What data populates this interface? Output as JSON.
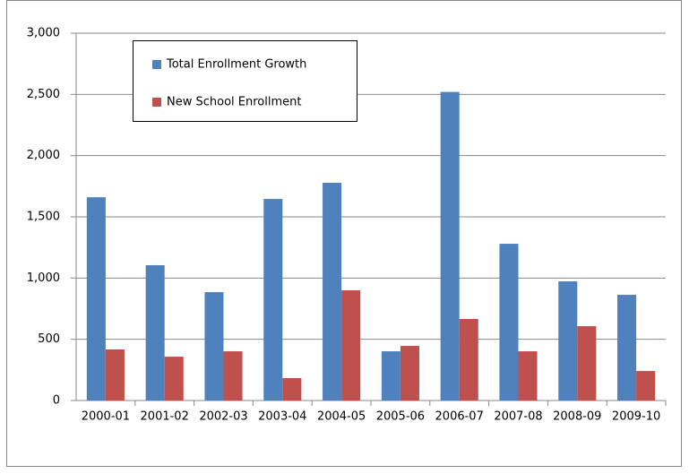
{
  "chart_data": {
    "type": "bar",
    "categories": [
      "2000-01",
      "2001-02",
      "2002-03",
      "2003-04",
      "2004-05",
      "2005-06",
      "2006-07",
      "2007-08",
      "2008-09",
      "2009-10"
    ],
    "series": [
      {
        "name": "Total Enrollment  Growth",
        "color": "#4f81bd",
        "values": [
          1660,
          1105,
          885,
          1646,
          1778,
          402,
          2520,
          1280,
          973,
          863
        ]
      },
      {
        "name": "New School Enrollment",
        "color": "#c0504d",
        "values": [
          417,
          358,
          402,
          183,
          900,
          446,
          666,
          402,
          607,
          241
        ]
      }
    ],
    "ylim": [
      0,
      3000
    ],
    "yticks": [
      0,
      {
        "value": 500,
        "label": "500"
      },
      {
        "value": 1000,
        "label": "1,000"
      },
      {
        "value": 1500,
        "label": "1,500"
      },
      {
        "value": 2000,
        "label": "2,000"
      },
      {
        "value": 2500,
        "label": "2,500"
      },
      {
        "value": 3000,
        "label": "3,000"
      }
    ],
    "grid": true
  }
}
